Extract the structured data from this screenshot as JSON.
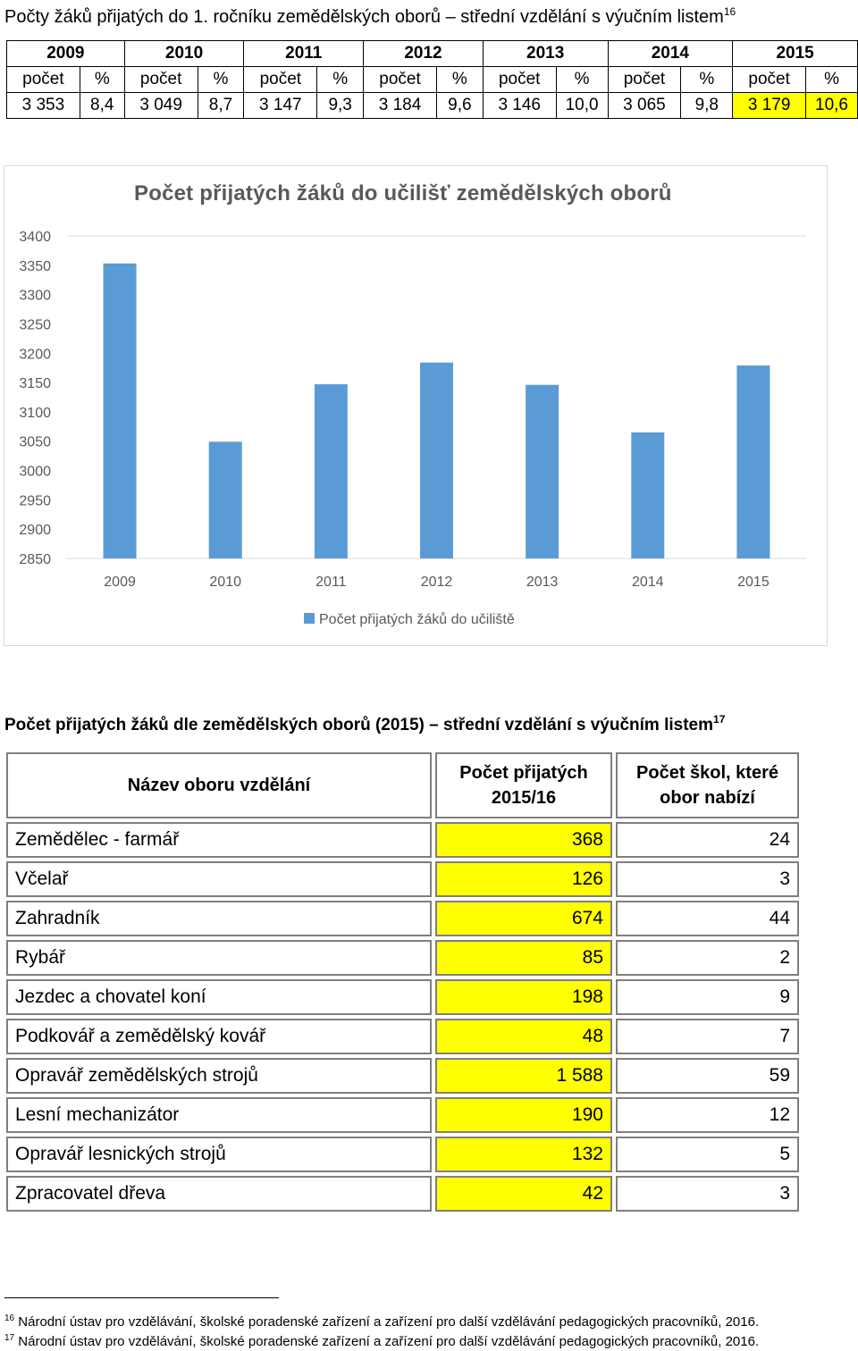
{
  "heading1": {
    "text": "Počty žáků přijatých do 1. ročníku zemědělských oborů – střední vzdělání s výučním listem",
    "sup": "16"
  },
  "table1": {
    "years": [
      "2009",
      "2010",
      "2011",
      "2012",
      "2013",
      "2014",
      "2015"
    ],
    "sub_count": "počet",
    "sub_pct": "%",
    "values": [
      {
        "count": "3 353",
        "pct": "8,4"
      },
      {
        "count": "3 049",
        "pct": "8,7"
      },
      {
        "count": "3 147",
        "pct": "9,3"
      },
      {
        "count": "3 184",
        "pct": "9,6"
      },
      {
        "count": "3 146",
        "pct": "10,0"
      },
      {
        "count": "3 065",
        "pct": "9,8"
      },
      {
        "count": "3 179",
        "pct": "10,6"
      }
    ],
    "highlight_color": "#ffff00"
  },
  "chart_data": {
    "type": "bar",
    "title": "Počet přijatých žáků do učilišť zemědělských oborů",
    "categories": [
      "2009",
      "2010",
      "2011",
      "2012",
      "2013",
      "2014",
      "2015"
    ],
    "series": [
      {
        "name": "Počet přijatých žáků do učiliště",
        "values": [
          3353,
          3049,
          3147,
          3184,
          3146,
          3065,
          3179
        ]
      }
    ],
    "ylim": [
      2850,
      3400
    ],
    "yticks": [
      2850,
      2900,
      2950,
      3000,
      3050,
      3100,
      3150,
      3200,
      3250,
      3300,
      3350,
      3400
    ],
    "bar_color": "#5b9bd5",
    "grid": false,
    "legend": "bottom"
  },
  "heading2": {
    "text": "Počet přijatých žáků dle zemědělských oborů (2015) – střední vzdělání s výučním listem",
    "sup": "17"
  },
  "table2": {
    "headers": [
      "Název oboru vzdělání",
      "Počet přijatých 2015/16",
      "Počet škol, které obor nabízí"
    ],
    "rows": [
      {
        "name": "Zemědělec - farmář",
        "admitted": "368",
        "schools": "24"
      },
      {
        "name": "Včelař",
        "admitted": "126",
        "schools": "3"
      },
      {
        "name": "Zahradník",
        "admitted": "674",
        "schools": "44"
      },
      {
        "name": "Rybář",
        "admitted": "85",
        "schools": "2"
      },
      {
        "name": "Jezdec a chovatel koní",
        "admitted": "198",
        "schools": "9"
      },
      {
        "name": "Podkovář a zemědělský kovář",
        "admitted": "48",
        "schools": "7"
      },
      {
        "name": "Opravář zemědělských strojů",
        "admitted": "1 588",
        "schools": "59"
      },
      {
        "name": "Lesní mechanizátor",
        "admitted": "190",
        "schools": "12"
      },
      {
        "name": "Opravář lesnických strojů",
        "admitted": "132",
        "schools": "5"
      },
      {
        "name": "Zpracovatel dřeva",
        "admitted": "42",
        "schools": "3"
      }
    ]
  },
  "footnotes": [
    {
      "num": "16",
      "text": "Národní ústav pro vzdělávání, školské poradenské zařízení a zařízení pro další vzdělávání pedagogických pracovníků, 2016."
    },
    {
      "num": "17",
      "text": "Národní ústav pro vzdělávání, školské poradenské zařízení a zařízení pro další vzdělávání pedagogických pracovníků, 2016."
    }
  ]
}
